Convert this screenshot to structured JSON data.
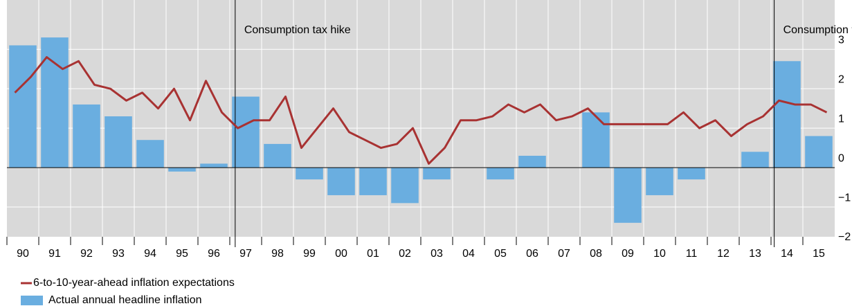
{
  "chart_data": {
    "type": "bar",
    "x": [
      1990,
      1991,
      1992,
      1993,
      1994,
      1995,
      1996,
      1997,
      1998,
      1999,
      2000,
      2001,
      2002,
      2003,
      2004,
      2005,
      2006,
      2007,
      2008,
      2009,
      2010,
      2011,
      2012,
      2013,
      2014,
      2015
    ],
    "xlim": [
      1989.5,
      2015.5
    ],
    "xticks": [
      {
        "value": 1990,
        "label": "90"
      },
      {
        "value": 1991,
        "label": "91"
      },
      {
        "value": 1992,
        "label": "92"
      },
      {
        "value": 1993,
        "label": "93"
      },
      {
        "value": 1994,
        "label": "94"
      },
      {
        "value": 1995,
        "label": "95"
      },
      {
        "value": 1996,
        "label": "96"
      },
      {
        "value": 1997,
        "label": "97"
      },
      {
        "value": 1998,
        "label": "98"
      },
      {
        "value": 1999,
        "label": "99"
      },
      {
        "value": 2000,
        "label": "00"
      },
      {
        "value": 2001,
        "label": "01"
      },
      {
        "value": 2002,
        "label": "02"
      },
      {
        "value": 2003,
        "label": "03"
      },
      {
        "value": 2004,
        "label": "04"
      },
      {
        "value": 2005,
        "label": "05"
      },
      {
        "value": 2006,
        "label": "06"
      },
      {
        "value": 2007,
        "label": "07"
      },
      {
        "value": 2008,
        "label": "08"
      },
      {
        "value": 2009,
        "label": "09"
      },
      {
        "value": 2010,
        "label": "10"
      },
      {
        "value": 2011,
        "label": "11"
      },
      {
        "value": 2012,
        "label": "12"
      },
      {
        "value": 2013,
        "label": "13"
      },
      {
        "value": 2014,
        "label": "14"
      },
      {
        "value": 2015,
        "label": "15"
      }
    ],
    "ylim": [
      -2,
      4.25
    ],
    "yticks": [
      {
        "value": -2,
        "label": "−2"
      },
      {
        "value": -1,
        "label": "−1"
      },
      0,
      1,
      2,
      3
    ],
    "grid": true,
    "series": [
      {
        "name": "Actual annual headline inflation",
        "type": "bar",
        "color": "#6aaee0",
        "values": [
          3.1,
          3.3,
          1.6,
          1.3,
          0.7,
          -0.1,
          0.1,
          1.8,
          0.6,
          -0.3,
          -0.7,
          -0.7,
          -0.9,
          -0.3,
          0,
          -0.3,
          0.3,
          0,
          1.4,
          -1.4,
          -0.7,
          -0.3,
          0,
          0.4,
          2.7,
          0.8
        ]
      },
      {
        "name": "6-to-10-year-ahead inflation expectations",
        "type": "line",
        "color": "#a83232",
        "x": [
          1989.75,
          1990.25,
          1990.75,
          1991.25,
          1991.75,
          1992.25,
          1992.75,
          1993.25,
          1993.75,
          1994.25,
          1994.75,
          1995.25,
          1995.75,
          1996.25,
          1996.75,
          1997.25,
          1997.75,
          1998.25,
          1998.75,
          1999.25,
          1999.75,
          2000.25,
          2000.75,
          2001.25,
          2001.75,
          2002.25,
          2002.75,
          2003.25,
          2003.75,
          2004.25,
          2004.75,
          2005.25,
          2005.75,
          2006.25,
          2006.75,
          2007.25,
          2007.75,
          2008.25,
          2008.75,
          2009.25,
          2009.75,
          2010.25,
          2010.75,
          2011.25,
          2011.75,
          2012.25,
          2012.75,
          2013.25,
          2013.75,
          2014.25,
          2014.75,
          2015.25
        ],
        "values": [
          1.9,
          2.3,
          2.8,
          2.5,
          2.7,
          2.1,
          2.0,
          1.7,
          1.9,
          1.5,
          2.0,
          1.2,
          2.2,
          1.4,
          1.0,
          1.2,
          1.2,
          1.8,
          0.5,
          1.0,
          1.5,
          0.9,
          0.7,
          0.5,
          0.6,
          1.0,
          0.1,
          0.5,
          1.2,
          1.2,
          1.3,
          1.6,
          1.4,
          1.6,
          1.2,
          1.3,
          1.5,
          1.1,
          1.1,
          1.1,
          1.1,
          1.1,
          1.4,
          1.0,
          1.2,
          0.8,
          1.1,
          1.3,
          1.7,
          1.6,
          1.6,
          1.4
        ]
      }
    ],
    "annotations": [
      {
        "x": 1996.67,
        "text": "Consumption tax hike"
      },
      {
        "x": 2013.6,
        "text": "Consumption tax hike"
      }
    ]
  }
}
